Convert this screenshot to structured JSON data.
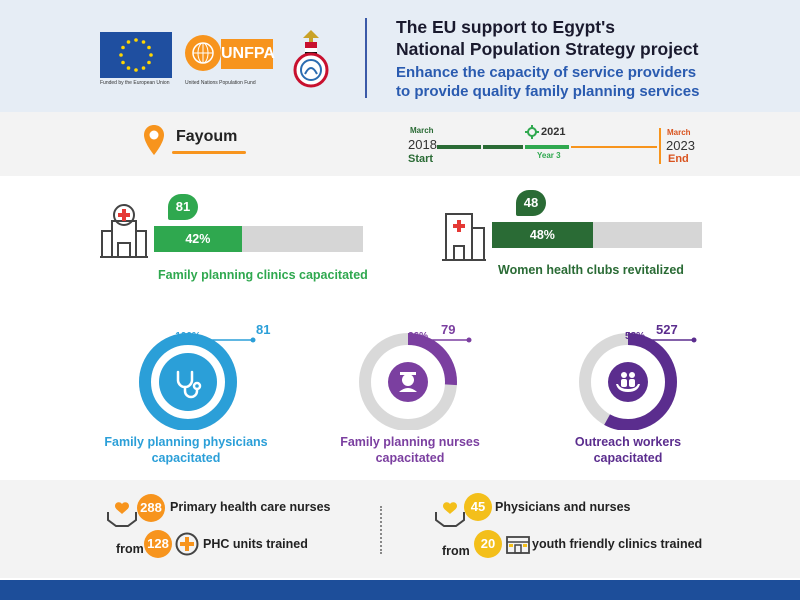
{
  "header": {
    "eu_caption": "Funded by the European Union",
    "unfpa_text": "UNFPA",
    "unfpa_caption": "United Nations Population Fund",
    "title_line1": "The EU support to Egypt's",
    "title_line2": "National Population Strategy project",
    "subtitle_line1": "Enhance the capacity of service providers",
    "subtitle_line2": "to provide quality family planning services"
  },
  "location": {
    "name": "Fayoum",
    "timeline": {
      "start_month": "March",
      "start_year": "2018",
      "start_label": "Start",
      "current_year": "2021",
      "current_label": "Year 3",
      "end_month": "March",
      "end_year": "2023",
      "end_label": "End"
    }
  },
  "bars": [
    {
      "count": "81",
      "percent_label": "42%",
      "fraction": 0.42,
      "caption": "Family planning clinics capacitated",
      "color": "#2fa84f"
    },
    {
      "count": "48",
      "percent_label": "48%",
      "fraction": 0.48,
      "caption": "Women health clubs revitalized",
      "color": "#2a6b35"
    }
  ],
  "circles": [
    {
      "count": "81",
      "percent_label": "100%",
      "fraction": 1.0,
      "caption_line1": "Family planning physicians",
      "caption_line2": "capacitated",
      "color": "#2b9fd8",
      "icon": "stethoscope-icon"
    },
    {
      "count": "79",
      "percent_label": "26%",
      "fraction": 0.26,
      "caption_line1": "Family planning nurses",
      "caption_line2": "capacitated",
      "color": "#7b3fa0",
      "icon": "nurse-icon"
    },
    {
      "count": "527",
      "percent_label": "58%",
      "fraction": 0.58,
      "caption_line1": "Outreach workers",
      "caption_line2": "capacitated",
      "color": "#5b2d8e",
      "icon": "family-hands-icon"
    }
  ],
  "bottom": {
    "left": {
      "count1": "288",
      "label1": "Primary health care nurses",
      "from_label": "from",
      "count2": "128",
      "label2": "PHC units trained"
    },
    "right": {
      "count1": "45",
      "label1": "Physicians and nurses",
      "from_label": "from",
      "count2": "20",
      "label2": "youth friendly clinics trained"
    }
  },
  "colors": {
    "orange": "#f7941d",
    "yellow": "#f3bf1a",
    "green": "#2fa84f",
    "dark_green": "#2a6b35",
    "blue": "#2b9fd8",
    "purple": "#7b3fa0",
    "navy": "#1d4e9a"
  }
}
